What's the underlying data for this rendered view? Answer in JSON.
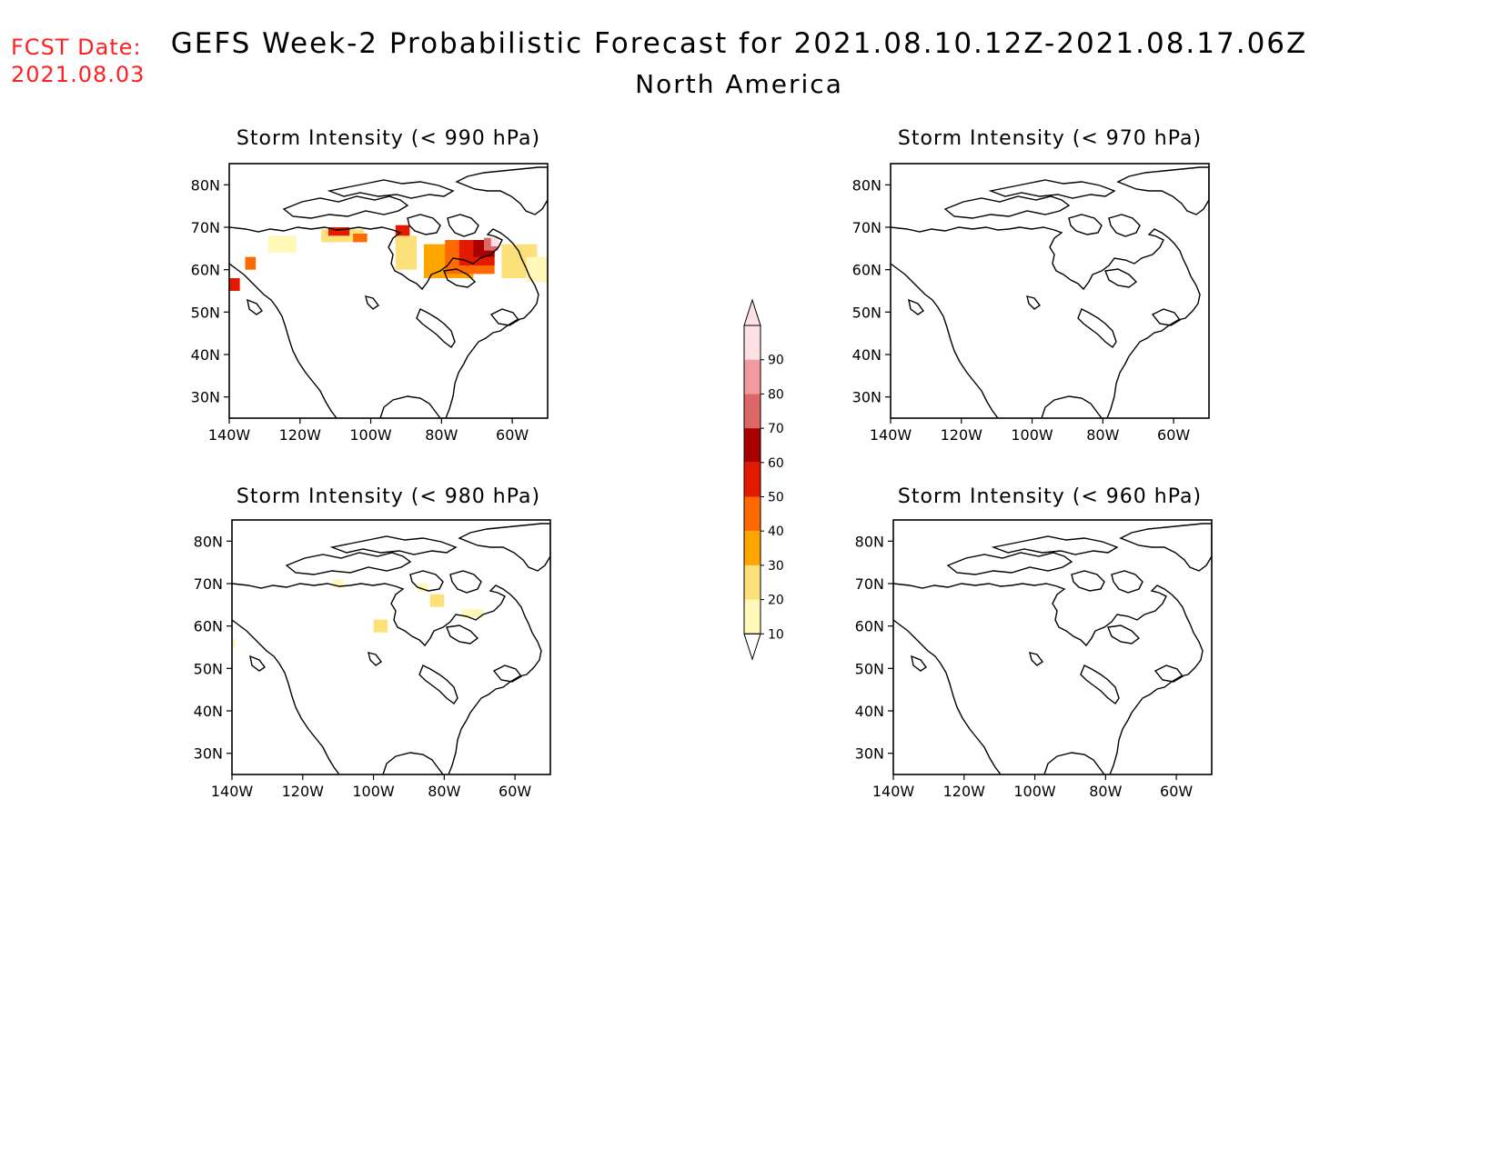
{
  "header": {
    "fcst_label": "FCST Date:",
    "fcst_date": "2021.08.03",
    "title": "GEFS Week-2 Probabilistic Forecast for 2021.08.10.12Z-2021.08.17.06Z",
    "region": "North America"
  },
  "colors": {
    "header_text": "#ff2020",
    "scale": [
      "#fff8b8",
      "#fce17a",
      "#ffa500",
      "#ff6a00",
      "#e31a00",
      "#a80000",
      "#dd6666",
      "#f39aa0",
      "#fde0e4"
    ]
  },
  "axes": {
    "lat_labels": [
      "80N",
      "70N",
      "60N",
      "50N",
      "40N",
      "30N"
    ],
    "lon_labels": [
      "140W",
      "120W",
      "100W",
      "80W",
      "60W"
    ]
  },
  "panels": [
    {
      "id": "p990",
      "title": "Storm Intensity (< 990 hPa)"
    },
    {
      "id": "p970",
      "title": "Storm Intensity (< 970 hPa)"
    },
    {
      "id": "p980",
      "title": "Storm Intensity (< 980 hPa)"
    },
    {
      "id": "p960",
      "title": "Storm Intensity (< 960 hPa)"
    }
  ],
  "colorbar": {
    "labels": [
      "90",
      "80",
      "70",
      "60",
      "50",
      "40",
      "30",
      "20",
      "10"
    ]
  }
}
